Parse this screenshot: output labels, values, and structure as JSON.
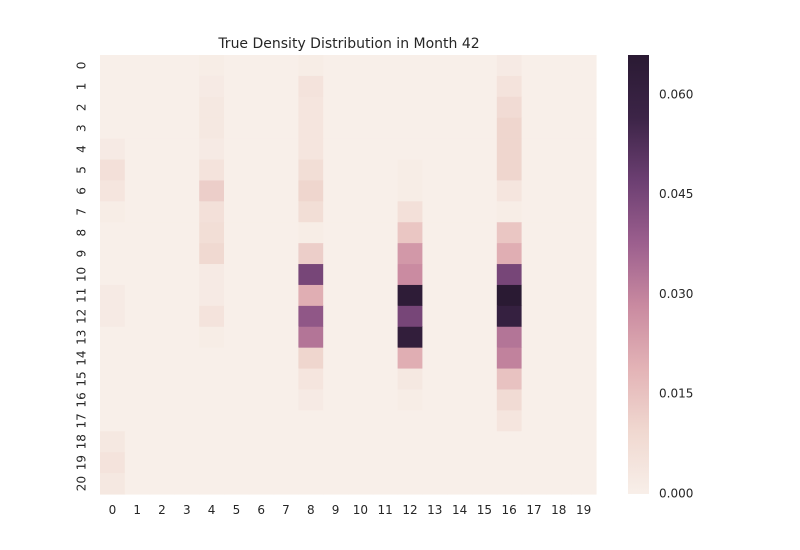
{
  "chart_data": {
    "type": "heatmap",
    "title": "True Density Distribution in Month 42",
    "x_ticks": [
      "0",
      "1",
      "2",
      "3",
      "4",
      "5",
      "6",
      "7",
      "8",
      "9",
      "10",
      "11",
      "12",
      "13",
      "14",
      "15",
      "16",
      "17",
      "18",
      "19"
    ],
    "y_ticks": [
      "0",
      "1",
      "2",
      "3",
      "4",
      "5",
      "6",
      "7",
      "8",
      "9",
      "10",
      "11",
      "12",
      "13",
      "14",
      "15",
      "16",
      "17",
      "18",
      "19",
      "20"
    ],
    "colorbar": {
      "range": [
        0,
        0.066
      ],
      "ticks": [
        "0.000",
        "0.015",
        "0.030",
        "0.045",
        "0.060"
      ],
      "tick_values": [
        0.0,
        0.015,
        0.03,
        0.045,
        0.06
      ],
      "colors_light_to_dark": [
        "#f8efe9",
        "#f0d8d0",
        "#e3b3b6",
        "#c98aa0",
        "#9c5f8e",
        "#6c3f72",
        "#3c2447",
        "#2a1a33"
      ]
    },
    "values": [
      [
        0.0,
        0,
        0,
        0,
        0.001,
        0,
        0,
        0,
        0.001,
        0,
        0,
        0,
        0.0,
        0,
        0,
        0,
        0.002,
        0,
        0,
        0
      ],
      [
        0.0,
        0,
        0,
        0,
        0.002,
        0,
        0,
        0,
        0.005,
        0,
        0,
        0,
        0.0,
        0,
        0,
        0,
        0.005,
        0,
        0,
        0
      ],
      [
        0.0,
        0,
        0,
        0,
        0.003,
        0,
        0,
        0,
        0.004,
        0,
        0,
        0,
        0.0,
        0,
        0,
        0,
        0.008,
        0,
        0,
        0
      ],
      [
        0.0,
        0,
        0,
        0,
        0.003,
        0,
        0,
        0,
        0.004,
        0,
        0,
        0,
        0.0,
        0,
        0,
        0,
        0.01,
        0,
        0,
        0
      ],
      [
        0.002,
        0,
        0,
        0,
        0.002,
        0,
        0,
        0,
        0.004,
        0,
        0,
        0,
        0.0,
        0,
        0,
        0,
        0.01,
        0,
        0,
        0
      ],
      [
        0.006,
        0,
        0,
        0,
        0.005,
        0,
        0,
        0,
        0.007,
        0,
        0,
        0,
        0.001,
        0,
        0,
        0,
        0.01,
        0,
        0,
        0
      ],
      [
        0.004,
        0,
        0,
        0,
        0.012,
        0,
        0,
        0,
        0.01,
        0,
        0,
        0,
        0.001,
        0,
        0,
        0,
        0.004,
        0,
        0,
        0
      ],
      [
        0.001,
        0,
        0,
        0,
        0.006,
        0,
        0,
        0,
        0.007,
        0,
        0,
        0,
        0.006,
        0,
        0,
        0,
        0.001,
        0,
        0,
        0
      ],
      [
        0.0,
        0,
        0,
        0,
        0.007,
        0,
        0,
        0,
        0.001,
        0,
        0,
        0,
        0.014,
        0,
        0,
        0,
        0.014,
        0,
        0,
        0
      ],
      [
        0.0,
        0,
        0,
        0,
        0.009,
        0,
        0,
        0,
        0.012,
        0,
        0,
        0,
        0.025,
        0,
        0,
        0,
        0.02,
        0,
        0,
        0
      ],
      [
        0.0,
        0,
        0,
        0,
        0.002,
        0,
        0,
        0,
        0.045,
        0,
        0,
        0,
        0.028,
        0,
        0,
        0,
        0.045,
        0,
        0,
        0
      ],
      [
        0.002,
        0,
        0,
        0,
        0.002,
        0,
        0,
        0,
        0.02,
        0,
        0,
        0,
        0.064,
        0,
        0,
        0,
        0.066,
        0,
        0,
        0
      ],
      [
        0.002,
        0,
        0,
        0,
        0.005,
        0,
        0,
        0,
        0.04,
        0,
        0,
        0,
        0.045,
        0,
        0,
        0,
        0.06,
        0,
        0,
        0
      ],
      [
        0.0,
        0,
        0,
        0,
        0.001,
        0,
        0,
        0,
        0.033,
        0,
        0,
        0,
        0.062,
        0,
        0,
        0,
        0.033,
        0,
        0,
        0
      ],
      [
        0.0,
        0,
        0,
        0,
        0.0,
        0,
        0,
        0,
        0.01,
        0,
        0,
        0,
        0.02,
        0,
        0,
        0,
        0.03,
        0,
        0,
        0
      ],
      [
        0.0,
        0,
        0,
        0,
        0.0,
        0,
        0,
        0,
        0.004,
        0,
        0,
        0,
        0.003,
        0,
        0,
        0,
        0.015,
        0,
        0,
        0
      ],
      [
        0.0,
        0,
        0,
        0,
        0.0,
        0,
        0,
        0,
        0.002,
        0,
        0,
        0,
        0.001,
        0,
        0,
        0,
        0.008,
        0,
        0,
        0
      ],
      [
        0.0,
        0,
        0,
        0,
        0.0,
        0,
        0,
        0,
        0.0,
        0,
        0,
        0,
        0.0,
        0,
        0,
        0,
        0.004,
        0,
        0,
        0
      ],
      [
        0.003,
        0,
        0,
        0,
        0.0,
        0,
        0,
        0,
        0.0,
        0,
        0,
        0,
        0.0,
        0,
        0,
        0,
        0.0,
        0,
        0,
        0
      ],
      [
        0.005,
        0,
        0,
        0,
        0.0,
        0,
        0,
        0,
        0.0,
        0,
        0,
        0,
        0.0,
        0,
        0,
        0,
        0.0,
        0,
        0,
        0
      ],
      [
        0.003,
        0,
        0,
        0,
        0.0,
        0,
        0,
        0,
        0.0,
        0,
        0,
        0,
        0.0,
        0,
        0,
        0,
        0.0,
        0,
        0,
        0
      ]
    ]
  }
}
